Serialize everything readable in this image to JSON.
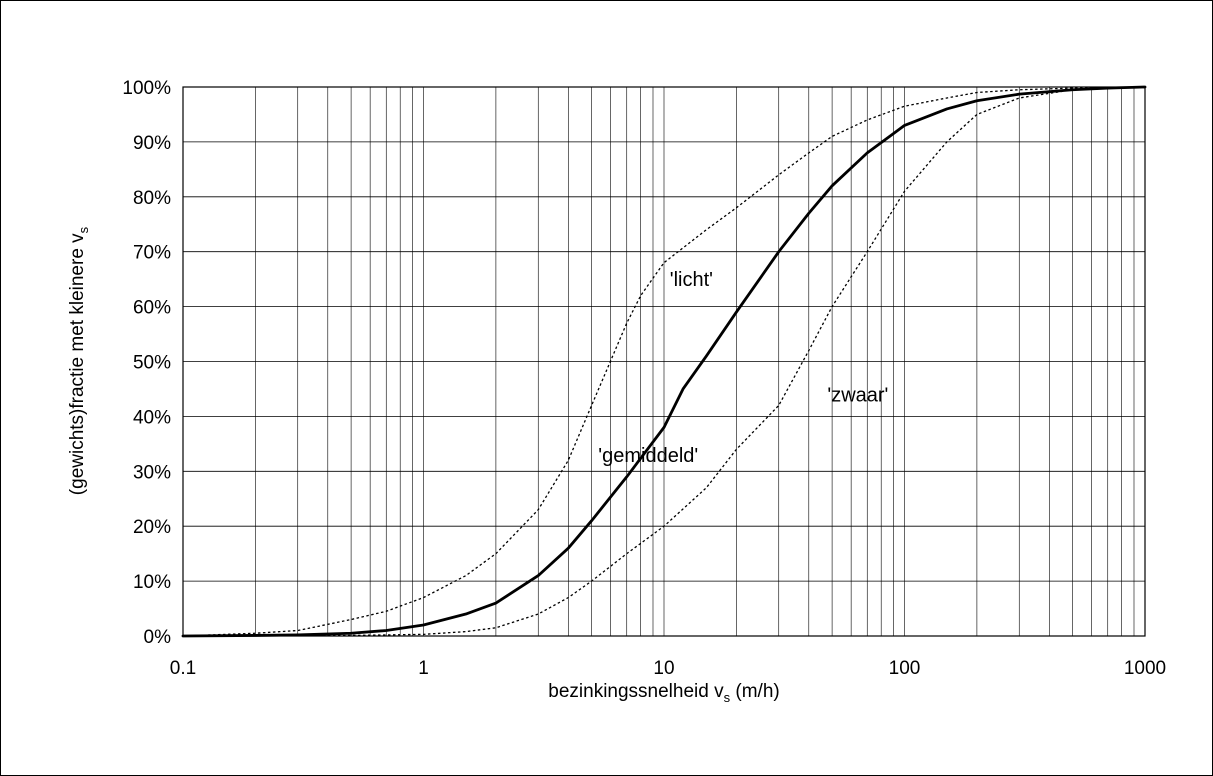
{
  "chart_data": {
    "type": "line",
    "xscale": "log",
    "xlim": [
      0.1,
      1000
    ],
    "ylim": [
      0,
      100
    ],
    "grid": true,
    "legend": "none",
    "xlabel": {
      "main": "bezinkingssnelheid v",
      "sub": "s",
      "unit": " (m/h)"
    },
    "ylabel": {
      "main": "(gewichts)fractie met kleinere v",
      "sub": "s"
    },
    "x_ticks": [
      {
        "value": 0.1,
        "label": "0.1"
      },
      {
        "value": 1,
        "label": "1"
      },
      {
        "value": 10,
        "label": "10"
      },
      {
        "value": 100,
        "label": "100"
      },
      {
        "value": 1000,
        "label": "1000"
      }
    ],
    "y_ticks": [
      {
        "value": 0,
        "label": "0%"
      },
      {
        "value": 10,
        "label": "10%"
      },
      {
        "value": 20,
        "label": "20%"
      },
      {
        "value": 30,
        "label": "30%"
      },
      {
        "value": 40,
        "label": "40%"
      },
      {
        "value": 50,
        "label": "50%"
      },
      {
        "value": 60,
        "label": "60%"
      },
      {
        "value": 70,
        "label": "70%"
      },
      {
        "value": 80,
        "label": "80%"
      },
      {
        "value": 90,
        "label": "90%"
      },
      {
        "value": 100,
        "label": "100%"
      }
    ],
    "series": [
      {
        "style": "solid",
        "x": [
          0.1,
          0.2,
          0.3,
          0.5,
          0.7,
          1,
          1.5,
          2,
          3,
          4,
          5,
          7,
          10,
          12,
          15,
          20,
          30,
          40,
          50,
          70,
          100,
          150,
          200,
          300,
          500,
          700,
          1000
        ],
        "y": [
          0,
          0.1,
          0.2,
          0.5,
          1,
          2,
          4,
          6,
          11,
          16,
          21,
          29,
          38,
          45,
          51,
          59,
          70,
          77,
          82,
          88,
          93,
          96,
          97.5,
          98.7,
          99.5,
          99.8,
          100
        ]
      },
      {
        "style": "dotted",
        "x": [
          0.1,
          0.2,
          0.3,
          0.5,
          0.7,
          1,
          1.5,
          2,
          3,
          4,
          5,
          7,
          8,
          10,
          15,
          20,
          30,
          40,
          50,
          70,
          100,
          150,
          200,
          300,
          500,
          1000
        ],
        "y": [
          0,
          0.5,
          1,
          3,
          4.5,
          7,
          11,
          15,
          23,
          32,
          42,
          57,
          62,
          68,
          74,
          78,
          84,
          88,
          91,
          94,
          96.5,
          98,
          99,
          99.5,
          99.8,
          100
        ]
      },
      {
        "style": "dotted",
        "x": [
          0.1,
          0.5,
          1,
          1.5,
          2,
          3,
          4,
          5,
          7,
          10,
          15,
          20,
          30,
          40,
          50,
          70,
          100,
          150,
          200,
          300,
          500,
          700,
          1000
        ],
        "y": [
          0,
          0.1,
          0.3,
          0.8,
          1.5,
          4,
          7,
          10,
          15,
          20,
          27,
          34,
          42,
          52,
          60,
          70,
          81,
          90,
          95,
          98,
          99.5,
          99.8,
          100
        ]
      }
    ],
    "annotations": [
      {
        "text": "'licht'",
        "x": 13,
        "y": 65
      },
      {
        "text": "'zwaar'",
        "x": 64,
        "y": 44
      },
      {
        "text": "'gemiddeld'",
        "x": 8.6,
        "y": 33
      }
    ]
  }
}
